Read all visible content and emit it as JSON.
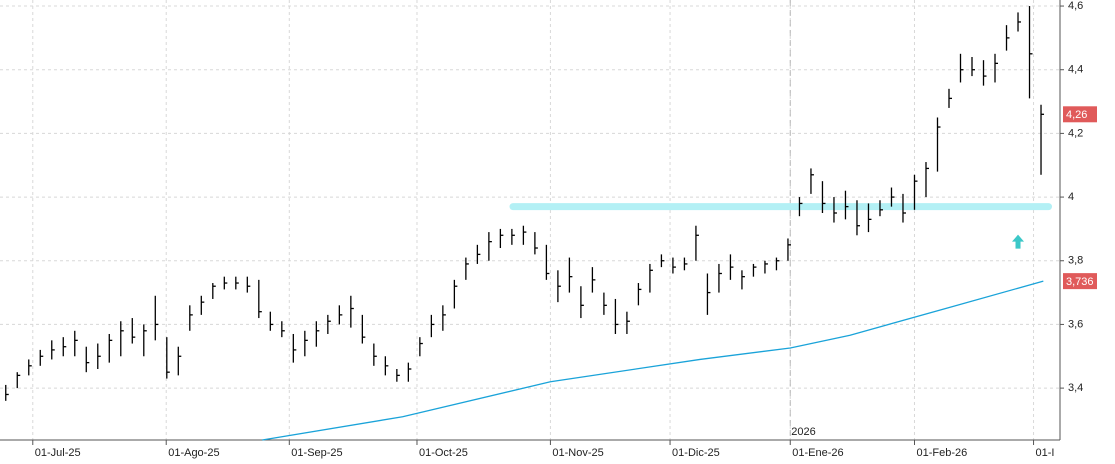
{
  "chart_data": {
    "type": "ohlc",
    "ylim": [
      3.237,
      4.619
    ],
    "yticks": [
      {
        "value": 3.4,
        "label": "3,4"
      },
      {
        "value": 3.6,
        "label": "3,6"
      },
      {
        "value": 3.8,
        "label": "3,8"
      },
      4,
      {
        "value": 4.2,
        "label": "4,2"
      },
      {
        "value": 4.4,
        "label": "4,4"
      },
      {
        "value": 4.6,
        "label": "4,6"
      }
    ],
    "xlim": [
      0,
      184.3
    ],
    "xticks": [
      {
        "value": 5.7,
        "label": "01-Jul-25"
      },
      {
        "value": 28.9,
        "label": "01-Ago-25"
      },
      {
        "value": 50.3,
        "label": "01-Sep-25"
      },
      {
        "value": 72.5,
        "label": "01-Oct-25"
      },
      {
        "value": 95.7,
        "label": "01-Nov-25"
      },
      {
        "value": 116.5,
        "label": "01-Dic-25"
      },
      {
        "value": 137.4,
        "label": "01-Ene-26"
      },
      {
        "value": 159,
        "label": "01-Feb-26"
      },
      {
        "value": 179.7,
        "label": "01-I"
      }
    ],
    "grid": true,
    "year_marker": {
      "x": 137.4,
      "label": "2026"
    },
    "series": [
      {
        "color": "#000000",
        "x": [
          1,
          3,
          5,
          7,
          9,
          11,
          13,
          15,
          17,
          19,
          21,
          23,
          25,
          27,
          29,
          31,
          33,
          35,
          37,
          39,
          41,
          43,
          45,
          47,
          49,
          51,
          53,
          55,
          57,
          59,
          61,
          63,
          65,
          67,
          69,
          71,
          73,
          75,
          77,
          79,
          81,
          83,
          85,
          87,
          89,
          91,
          93,
          95,
          97,
          99,
          101,
          103,
          105,
          107,
          109,
          111,
          113,
          115,
          117,
          119,
          121,
          123,
          125,
          127,
          129,
          131,
          133,
          135,
          137,
          139,
          141,
          143,
          145,
          147,
          149,
          151,
          153,
          155,
          157,
          159,
          161,
          163,
          165,
          167,
          169,
          171,
          173,
          175,
          177,
          179,
          181
        ],
        "high": [
          3.41,
          3.45,
          3.49,
          3.52,
          3.55,
          3.56,
          3.58,
          3.53,
          3.54,
          3.57,
          3.61,
          3.62,
          3.6,
          3.69,
          3.56,
          3.53,
          3.66,
          3.69,
          3.73,
          3.75,
          3.75,
          3.75,
          3.74,
          3.64,
          3.61,
          3.57,
          3.58,
          3.61,
          3.63,
          3.66,
          3.69,
          3.63,
          3.54,
          3.5,
          3.46,
          3.48,
          3.56,
          3.63,
          3.66,
          3.74,
          3.81,
          3.85,
          3.89,
          3.9,
          3.9,
          3.91,
          3.89,
          3.85,
          3.77,
          3.81,
          3.72,
          3.78,
          3.7,
          3.68,
          3.64,
          3.73,
          3.79,
          3.82,
          3.81,
          3.81,
          3.91,
          3.76,
          3.79,
          3.82,
          3.77,
          3.79,
          3.8,
          3.81,
          3.87,
          4.0,
          4.09,
          4.05,
          4.0,
          4.02,
          3.99,
          3.98,
          3.99,
          4.03,
          4.01,
          4.07,
          4.11,
          4.25,
          4.34,
          4.45,
          4.44,
          4.43,
          4.45,
          4.54,
          4.58,
          4.6,
          4.29
        ],
        "low": [
          3.36,
          3.4,
          3.44,
          3.47,
          3.49,
          3.5,
          3.5,
          3.45,
          3.46,
          3.48,
          3.5,
          3.54,
          3.5,
          3.55,
          3.43,
          3.44,
          3.58,
          3.63,
          3.68,
          3.71,
          3.71,
          3.7,
          3.62,
          3.58,
          3.56,
          3.48,
          3.5,
          3.53,
          3.57,
          3.6,
          3.59,
          3.54,
          3.47,
          3.44,
          3.42,
          3.42,
          3.5,
          3.56,
          3.58,
          3.65,
          3.74,
          3.79,
          3.8,
          3.84,
          3.85,
          3.85,
          3.82,
          3.74,
          3.67,
          3.7,
          3.62,
          3.7,
          3.63,
          3.57,
          3.57,
          3.66,
          3.7,
          3.78,
          3.76,
          3.77,
          3.8,
          3.63,
          3.7,
          3.74,
          3.71,
          3.75,
          3.76,
          3.77,
          3.8,
          3.94,
          4.01,
          3.95,
          3.92,
          3.93,
          3.88,
          3.89,
          3.94,
          3.97,
          3.92,
          3.96,
          4.0,
          4.08,
          4.28,
          4.36,
          4.38,
          4.35,
          4.36,
          4.46,
          4.52,
          4.31,
          4.07
        ],
        "close": [
          3.38,
          3.44,
          3.47,
          3.5,
          3.52,
          3.53,
          3.55,
          3.48,
          3.5,
          3.55,
          3.58,
          3.56,
          3.58,
          3.6,
          3.45,
          3.5,
          3.63,
          3.67,
          3.72,
          3.73,
          3.73,
          3.72,
          3.64,
          3.6,
          3.58,
          3.52,
          3.55,
          3.58,
          3.61,
          3.63,
          3.65,
          3.56,
          3.5,
          3.47,
          3.44,
          3.46,
          3.54,
          3.6,
          3.63,
          3.72,
          3.79,
          3.82,
          3.86,
          3.88,
          3.88,
          3.89,
          3.84,
          3.76,
          3.72,
          3.75,
          3.66,
          3.74,
          3.66,
          3.6,
          3.61,
          3.71,
          3.77,
          3.8,
          3.78,
          3.79,
          3.88,
          3.7,
          3.76,
          3.78,
          3.75,
          3.78,
          3.79,
          3.8,
          3.85,
          3.98,
          4.07,
          3.98,
          3.95,
          3.97,
          3.91,
          3.93,
          3.96,
          4.0,
          3.95,
          4.05,
          4.09,
          4.22,
          4.31,
          4.4,
          4.4,
          4.38,
          4.42,
          4.5,
          4.55,
          4.45,
          4.26
        ]
      },
      {
        "type": "line",
        "color": "#1aa3d9",
        "x": [
          45.6,
          70,
          95.7,
          121.7,
          137.4,
          147.8,
          165.2,
          181.4
        ],
        "values": [
          3.237,
          3.31,
          3.42,
          3.49,
          3.526,
          3.566,
          3.654,
          3.736
        ]
      }
    ],
    "support_band": {
      "value": 3.97,
      "x": [
        89.2,
        182.3
      ],
      "color": "#b3f0f5"
    },
    "signal_arrow": {
      "x": 177,
      "value": 3.86,
      "color": "#3cc8c8"
    },
    "price_markers": [
      {
        "value": 4.26,
        "label": "4,26"
      },
      {
        "value": 3.736,
        "label": "3,736"
      }
    ],
    "marker_color": "#e05a5a"
  }
}
